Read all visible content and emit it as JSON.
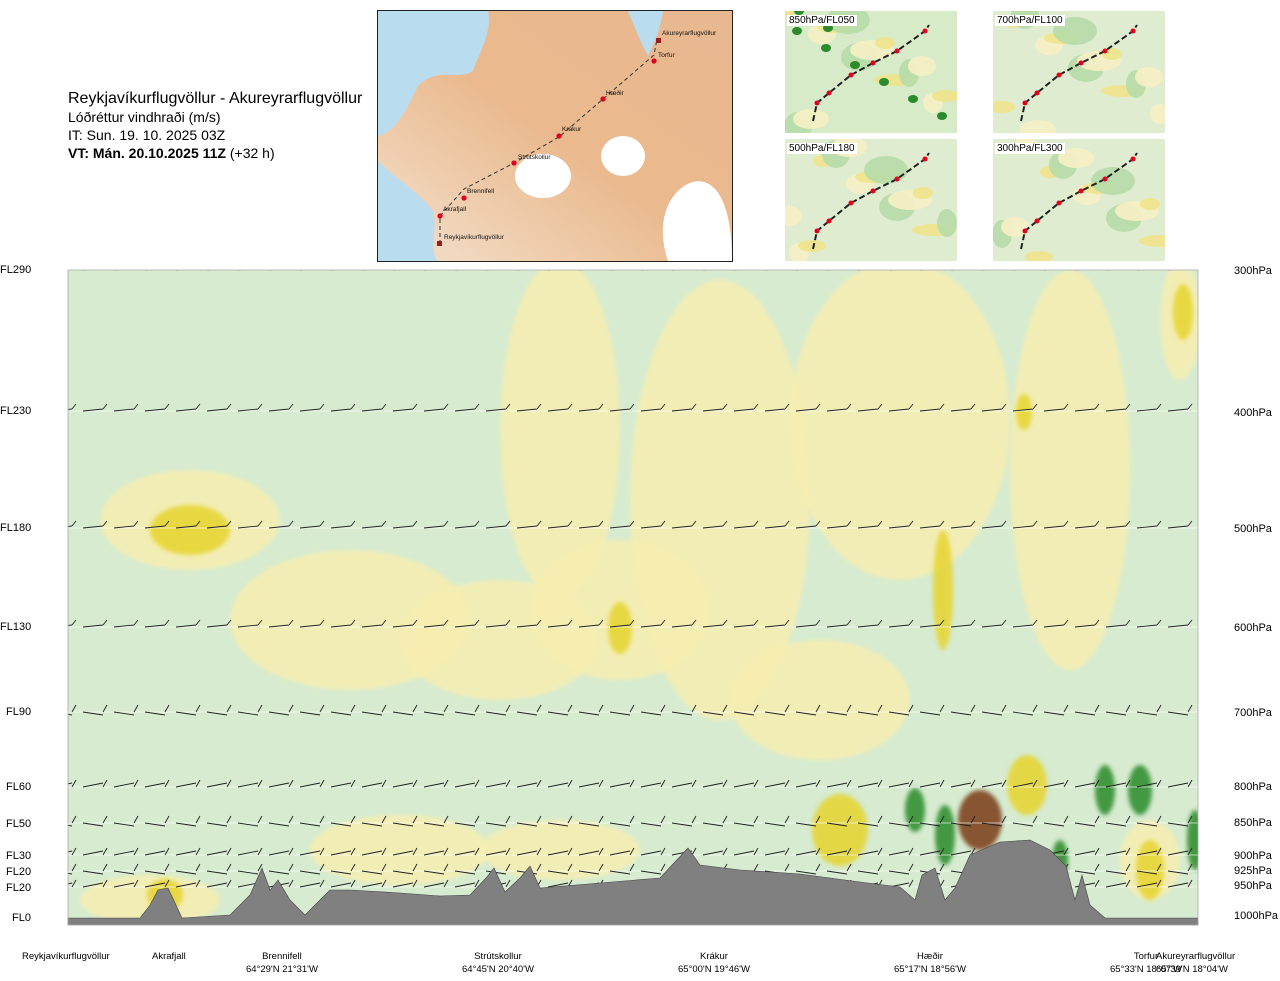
{
  "header": {
    "route": "Reykjavíkurflugvöllur - Akureyrarflugvöllur",
    "product": "Lóðréttur vindhraði (m/s)",
    "issue_time": "IT: Sun. 19. 10. 2025 03Z",
    "valid_time": "VT: Mán. 20.10.2025 11Z",
    "lead": "(+32 h)"
  },
  "map": {
    "waypoints": [
      "Akureyrarflugvöllur",
      "Torfur",
      "Hæðir",
      "Krákur",
      "Strútskollur",
      "Brennifell",
      "Akrafjall",
      "Reykjavíkurflugvöllur"
    ]
  },
  "thumbnails": [
    {
      "label": "850hPa/FL050"
    },
    {
      "label": "700hPa/FL100"
    },
    {
      "label": "500hPa/FL180"
    },
    {
      "label": "300hPa/FL300"
    }
  ],
  "chart_data": {
    "type": "heatmap",
    "title": "Lóðréttur vindhraði (m/s)",
    "flight_levels": [
      "FL290",
      "FL230",
      "FL180",
      "FL130",
      "FL90",
      "FL60",
      "FL50",
      "FL30",
      "FL20",
      "FL20",
      "FL0"
    ],
    "pressure_levels": [
      "300hPa",
      "400hPa",
      "500hPa",
      "600hPa",
      "700hPa",
      "800hPa",
      "850hPa",
      "900hPa",
      "925hPa",
      "950hPa",
      "1000hPa"
    ],
    "pressure_values_hpa": [
      300,
      400,
      500,
      600,
      700,
      800,
      850,
      900,
      925,
      950,
      1000
    ],
    "ylim_hpa": [
      1000,
      300
    ],
    "xlabel": "",
    "ylabel": "",
    "colorscale": {
      "downward": "#d9ecd2",
      "updraft_weak": "#f7eeb0",
      "updraft_strong": "#e6d42f",
      "downdraft_strong": "#2b8a2b",
      "updraft_peak": "#7a3a12"
    },
    "terrain_color": "#7f7f7f",
    "waypoints": [
      {
        "name": "Reykjavíkurflugvöllur",
        "coords": ""
      },
      {
        "name": "Akrafjall",
        "coords": ""
      },
      {
        "name": "Brennifell",
        "coords": "64°29'N 21°31'W"
      },
      {
        "name": "Strútskollur",
        "coords": "64°45'N 20°40'W"
      },
      {
        "name": "Krákur",
        "coords": "65°00'N 19°46'W"
      },
      {
        "name": "Hæðir",
        "coords": "65°17'N 18°56'W"
      },
      {
        "name": "Torfur",
        "coords": "65°33'N 18°07'W"
      },
      {
        "name": "Akureyrarflugvöllur",
        "coords": "65°39'N 18°04'W"
      }
    ]
  }
}
